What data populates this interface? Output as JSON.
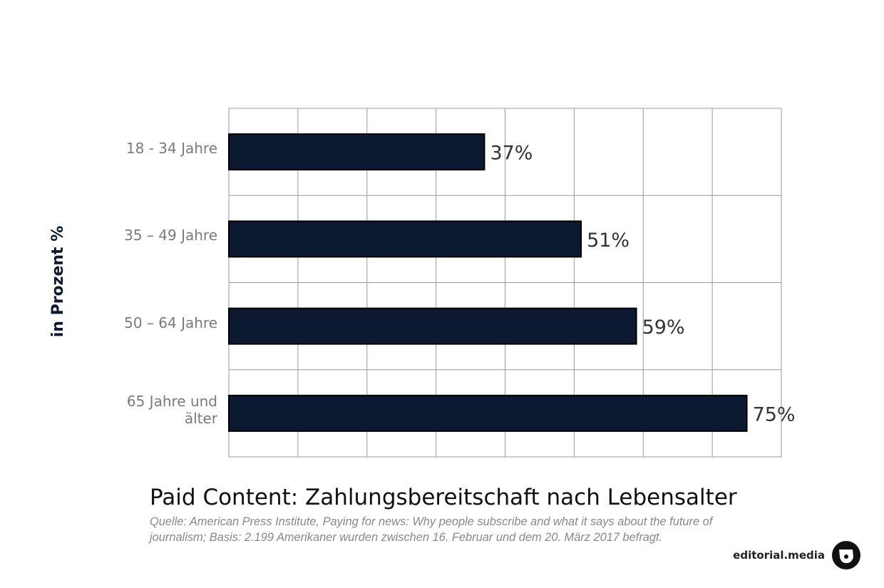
{
  "chart_data": {
    "type": "bar",
    "orientation": "horizontal",
    "title": "Paid Content: Zahlungsbereitschaft nach Lebensalter",
    "source": "Quelle: American Press Institute, Paying for news: Why people subscribe and what it says about the future of journalism; Basis: 2.199 Amerikaner wurden zwischen 16. Februar und dem 20. März 2017 befragt.",
    "y_axis_label": "in Prozent %",
    "categories": [
      "18 - 34 Jahre",
      "35 – 49 Jahre",
      "50 – 64 Jahre",
      "65 Jahre und älter"
    ],
    "values": [
      37,
      51,
      59,
      75
    ],
    "value_labels": [
      "37%",
      "51%",
      "59%",
      "75%"
    ],
    "color": "#0b1a30",
    "xlim": [
      0,
      80
    ],
    "xticks": [
      0,
      10,
      20,
      30,
      40,
      50,
      60,
      70,
      80
    ],
    "grid": true
  },
  "branding": "editorial.media"
}
